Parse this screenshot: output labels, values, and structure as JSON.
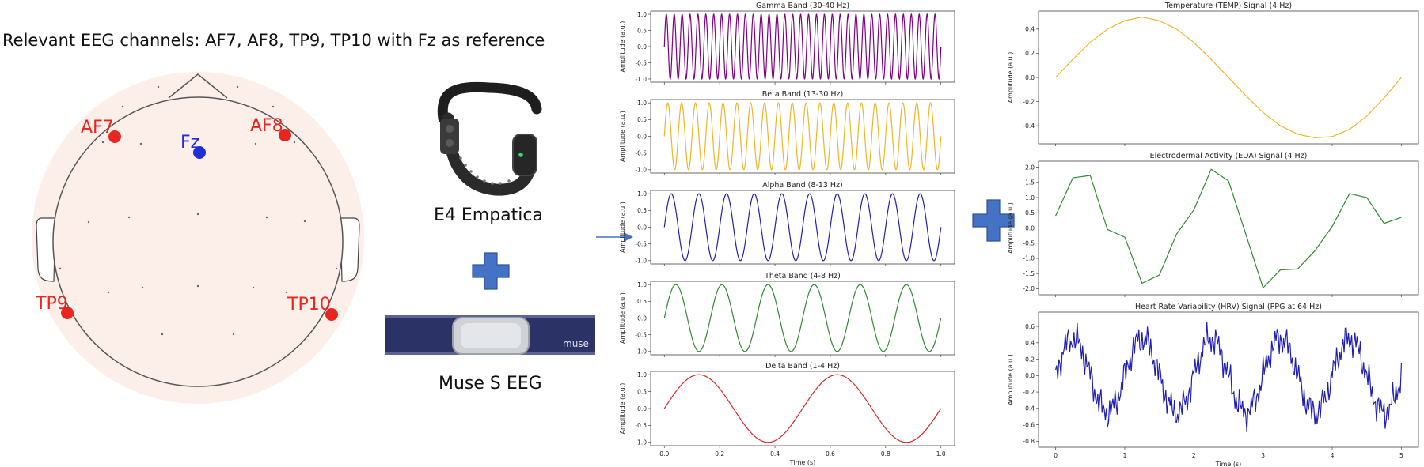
{
  "headline": "Relevant EEG channels: AF7, AF8, TP9, TP10 with Fz as reference",
  "electrodes": {
    "af7": {
      "label": "AF7",
      "color": "#e8251f"
    },
    "af8": {
      "label": "AF8",
      "color": "#e8251f"
    },
    "tp9": {
      "label": "TP9",
      "color": "#e8251f"
    },
    "tp10": {
      "label": "TP10",
      "color": "#e8251f"
    },
    "fz": {
      "label": "Fz",
      "color": "#1f2fd6"
    }
  },
  "devices": {
    "e4": {
      "label": "E4 Empatica",
      "icon": "wristband-icon"
    },
    "muse": {
      "label": "Muse S EEG",
      "icon": "headband-icon",
      "brand": "muse"
    }
  },
  "colors": {
    "plus": "#4472c4",
    "arrow": "#4472c4",
    "gamma": "#800080",
    "beta": "#f0b429",
    "alpha": "#1f1fb4",
    "theta": "#2e8b2e",
    "delta": "#d62728",
    "temp": "#f0b429",
    "eda": "#2e8b2e",
    "hrv": "#1f1fb4"
  },
  "chart_data": [
    {
      "type": "line",
      "title": "Gamma Band (30-40 Hz)",
      "ylabel": "Amplitude (a.u.)",
      "xlabel": "",
      "frequency_hz": 35,
      "xlim": [
        0,
        1
      ],
      "ylim": [
        -1,
        1
      ],
      "yticks": [
        "1.0",
        "0.5",
        "0.0",
        "-0.5",
        "-1.0"
      ],
      "color": "#800080"
    },
    {
      "type": "line",
      "title": "Beta Band (13-30 Hz)",
      "ylabel": "Amplitude (a.u.)",
      "xlabel": "",
      "frequency_hz": 20,
      "xlim": [
        0,
        1
      ],
      "ylim": [
        -1,
        1
      ],
      "yticks": [
        "1.0",
        "0.5",
        "0.0",
        "-0.5",
        "-1.0"
      ],
      "color": "#f0b429"
    },
    {
      "type": "line",
      "title": "Alpha Band (8-13 Hz)",
      "ylabel": "Amplitude (a.u.)",
      "xlabel": "",
      "frequency_hz": 10,
      "xlim": [
        0,
        1
      ],
      "ylim": [
        -1,
        1
      ],
      "yticks": [
        "1.0",
        "0.5",
        "0.0",
        "-0.5",
        "-1.0"
      ],
      "color": "#1f1fb4"
    },
    {
      "type": "line",
      "title": "Theta Band (4-8 Hz)",
      "ylabel": "Amplitude (a.u.)",
      "xlabel": "",
      "frequency_hz": 6,
      "xlim": [
        0,
        1
      ],
      "ylim": [
        -1,
        1
      ],
      "yticks": [
        "1.0",
        "0.5",
        "0.0",
        "-0.5",
        "-1.0"
      ],
      "color": "#2e8b2e"
    },
    {
      "type": "line",
      "title": "Delta Band (1-4 Hz)",
      "ylabel": "Amplitude (a.u.)",
      "xlabel": "Time (s)",
      "frequency_hz": 2,
      "xlim": [
        0,
        1
      ],
      "ylim": [
        -1,
        1
      ],
      "xticks": [
        "0.0",
        "0.2",
        "0.4",
        "0.6",
        "0.8",
        "1.0"
      ],
      "yticks": [
        "1.0",
        "0.5",
        "0.0",
        "-0.5",
        "-1.0"
      ],
      "color": "#d62728"
    },
    {
      "type": "line",
      "title": "Temperature (TEMP) Signal (4 Hz)",
      "ylabel": "Amplitude (a.u.)",
      "xlabel": "",
      "xlim": [
        0,
        5
      ],
      "ylim": [
        -0.5,
        0.5
      ],
      "yticks": [
        "0.4",
        "0.2",
        "0.0",
        "-0.2",
        "-0.4"
      ],
      "x": [
        0,
        0.25,
        0.5,
        0.75,
        1.0,
        1.25,
        1.5,
        1.75,
        2.0,
        2.25,
        2.5,
        2.75,
        3.0,
        3.25,
        3.5,
        3.75,
        4.0,
        4.25,
        4.5,
        4.75,
        5.0
      ],
      "y": [
        0.0,
        0.15,
        0.29,
        0.4,
        0.47,
        0.5,
        0.47,
        0.4,
        0.29,
        0.15,
        0.0,
        -0.15,
        -0.29,
        -0.4,
        -0.47,
        -0.5,
        -0.49,
        -0.43,
        -0.32,
        -0.17,
        0.0
      ],
      "color": "#f0b429"
    },
    {
      "type": "line",
      "title": "Electrodermal Activity (EDA) Signal (4 Hz)",
      "ylabel": "Amplitude (a.u.)",
      "xlabel": "",
      "xlim": [
        0,
        5
      ],
      "ylim": [
        -2.0,
        2.0
      ],
      "yticks": [
        "2.0",
        "1.5",
        "1.0",
        "0.5",
        "0.0",
        "-0.5",
        "-1.0",
        "-1.5",
        "-2.0"
      ],
      "x": [
        0,
        0.25,
        0.5,
        0.75,
        1.0,
        1.25,
        1.5,
        1.75,
        2.0,
        2.25,
        2.5,
        2.75,
        3.0,
        3.25,
        3.5,
        3.75,
        4.0,
        4.25,
        4.5,
        4.75,
        5.0
      ],
      "y": [
        0.4,
        1.65,
        1.73,
        -0.05,
        -0.3,
        -1.82,
        -1.55,
        -0.2,
        0.6,
        1.93,
        1.55,
        -0.2,
        -1.97,
        -1.38,
        -1.35,
        -0.75,
        0.05,
        1.13,
        1.0,
        0.15,
        0.35
      ],
      "color": "#2e8b2e"
    },
    {
      "type": "line",
      "title": "Heart Rate Variability (HRV) Signal (PPG at 64 Hz)",
      "ylabel": "Amplitude (a.u.)",
      "xlabel": "Time (s)",
      "frequency_hz": 1,
      "xlim": [
        0,
        5
      ],
      "ylim": [
        -0.8,
        0.7
      ],
      "xticks": [
        "0",
        "1",
        "2",
        "3",
        "4",
        "5"
      ],
      "yticks": [
        "0.6",
        "0.4",
        "0.2",
        "0.0",
        "-0.2",
        "-0.4",
        "-0.6",
        "-0.8"
      ],
      "color": "#1f1fb4"
    }
  ]
}
